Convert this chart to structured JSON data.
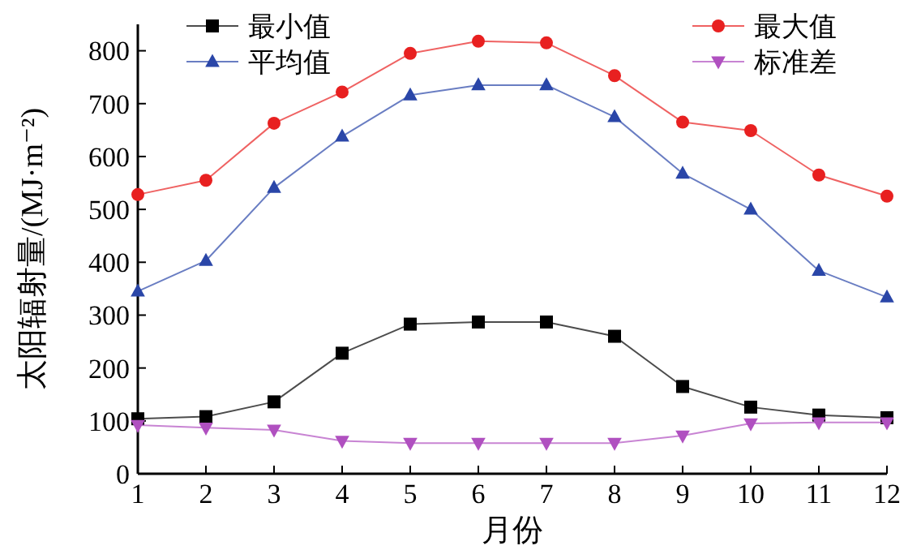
{
  "chart_data": {
    "type": "line",
    "xlabel": "月份",
    "ylabel": "太阳辐射量/(MJ·m⁻²)",
    "x": [
      1,
      2,
      3,
      4,
      5,
      6,
      7,
      8,
      9,
      10,
      11,
      12
    ],
    "xlim": [
      1,
      12
    ],
    "xticks": [
      1,
      2,
      3,
      4,
      5,
      6,
      7,
      8,
      9,
      10,
      11,
      12
    ],
    "ylim": [
      0,
      850
    ],
    "yticks": [
      0,
      100,
      200,
      300,
      400,
      500,
      600,
      700,
      800
    ],
    "grid": false,
    "legend": "top",
    "series": [
      {
        "name": "最小值",
        "color": "#000000",
        "marker": "square",
        "values": [
          104,
          108,
          136,
          228,
          283,
          287,
          287,
          260,
          165,
          126,
          111,
          106
        ]
      },
      {
        "name": "平均值",
        "color": "#2a46a8",
        "marker": "triangle",
        "values": [
          345,
          403,
          541,
          638,
          716,
          735,
          735,
          675,
          568,
          500,
          384,
          334
        ]
      },
      {
        "name": "最大值",
        "color": "#e82020",
        "marker": "circle",
        "values": [
          528,
          555,
          663,
          722,
          795,
          818,
          815,
          753,
          665,
          649,
          565,
          525
        ]
      },
      {
        "name": "标准差",
        "color": "#b050c0",
        "marker": "triangle-down",
        "values": [
          92,
          87,
          83,
          62,
          58,
          58,
          58,
          58,
          72,
          95,
          97,
          97
        ]
      }
    ]
  }
}
